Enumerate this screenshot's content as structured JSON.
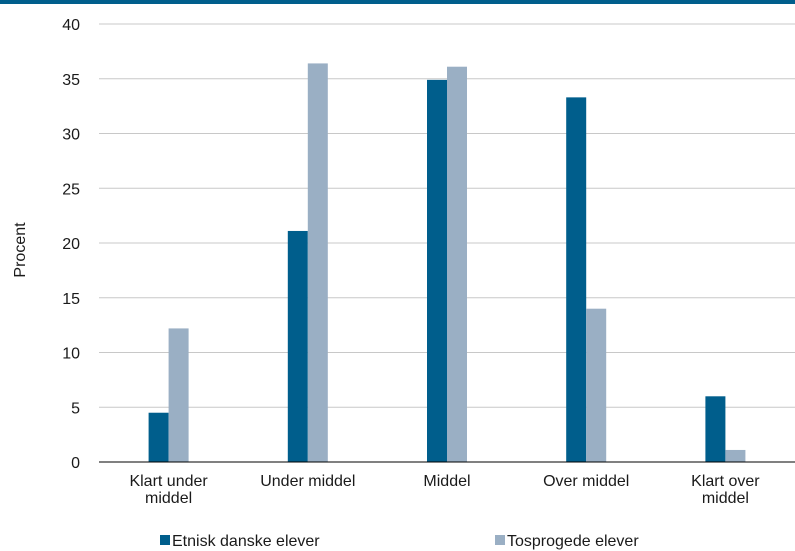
{
  "chart_data": {
    "type": "bar",
    "title": "",
    "xlabel": "",
    "ylabel": "Procent",
    "ylim": [
      0,
      40
    ],
    "yticks": [
      0,
      5,
      10,
      15,
      20,
      25,
      30,
      35,
      40
    ],
    "grid": true,
    "legend_position": "bottom",
    "categories": [
      [
        "Klart under",
        "middel"
      ],
      [
        "Under middel"
      ],
      [
        "Middel"
      ],
      [
        "Over middel"
      ],
      [
        "Klart over",
        "middel"
      ]
    ],
    "series": [
      {
        "name": "Etnisk danske elever",
        "color": "#005e8c",
        "values": [
          4.5,
          21.1,
          34.9,
          33.3,
          6.0
        ]
      },
      {
        "name": "Tosprogede elever",
        "color": "#9aafc4",
        "values": [
          12.2,
          36.4,
          36.1,
          14.0,
          1.1
        ]
      }
    ]
  },
  "style": {
    "top_rule_color": "#005e8c",
    "grid_color": "#c8c8c8",
    "axis_color": "#000000"
  }
}
